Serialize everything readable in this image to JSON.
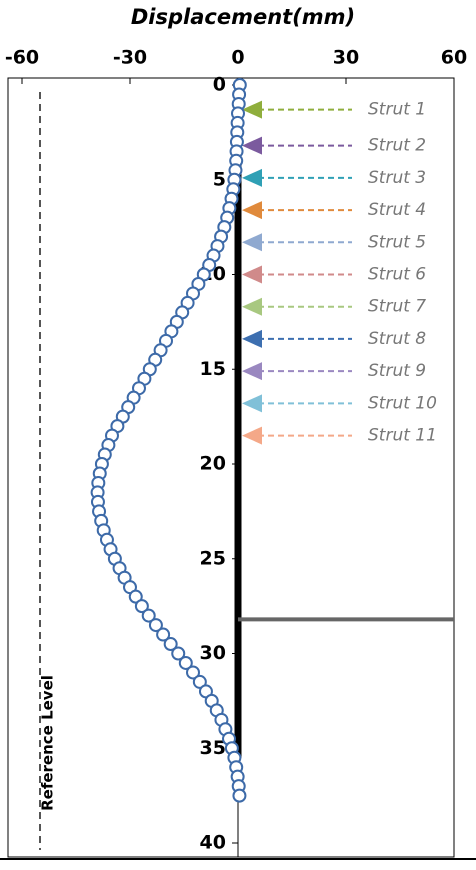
{
  "chart_data": {
    "type": "scatter",
    "title": "Displacement(mm)",
    "xlim": [
      -60,
      60
    ],
    "xticks": [
      -60,
      -30,
      0,
      30,
      60
    ],
    "ylim": [
      0,
      40
    ],
    "yticks": [
      0,
      5,
      10,
      15,
      20,
      25,
      30,
      35,
      40
    ],
    "y_inverted": true,
    "marker_color": "#3d6aa8",
    "x": [
      0.5,
      0.3,
      0.2,
      0,
      -0.1,
      -0.2,
      -0.3,
      -0.4,
      -0.5,
      -0.7,
      -1,
      -1.3,
      -1.8,
      -2.4,
      -3,
      -3.8,
      -4.7,
      -5.7,
      -6.8,
      -8,
      -9.5,
      -11,
      -12.5,
      -14,
      -15.5,
      -17,
      -18.5,
      -20,
      -21.5,
      -23,
      -24.5,
      -26,
      -27.5,
      -29,
      -30.5,
      -32,
      -33.5,
      -35,
      -36,
      -37,
      -37.8,
      -38.4,
      -38.8,
      -39,
      -38.9,
      -38.6,
      -38,
      -37.3,
      -36.4,
      -35.4,
      -34.2,
      -32.9,
      -31.5,
      -30,
      -28.4,
      -26.7,
      -24.8,
      -22.8,
      -20.8,
      -18.7,
      -16.6,
      -14.5,
      -12.5,
      -10.6,
      -8.9,
      -7.3,
      -5.9,
      -4.6,
      -3.5,
      -2.5,
      -1.7,
      -1,
      -0.5,
      -0.1,
      0.2,
      0.4
    ],
    "y": [
      0,
      0.5,
      1,
      1.5,
      2,
      2.5,
      3,
      3.5,
      4,
      4.5,
      5,
      5.5,
      6,
      6.5,
      7,
      7.5,
      8,
      8.5,
      9,
      9.5,
      10,
      10.5,
      11,
      11.5,
      12,
      12.5,
      13,
      13.5,
      14,
      14.5,
      15,
      15.5,
      16,
      16.5,
      17,
      17.5,
      18,
      18.5,
      19,
      19.5,
      20,
      20.5,
      21,
      21.5,
      22,
      22.5,
      23,
      23.5,
      24,
      24.5,
      25,
      25.5,
      26,
      26.5,
      27,
      27.5,
      28,
      28.5,
      29,
      29.5,
      30,
      30.5,
      31,
      31.5,
      32,
      32.5,
      33,
      33.5,
      34,
      34.5,
      35,
      35.5,
      36,
      36.5,
      37,
      37.5
    ],
    "wall_depth": 35.5,
    "excavation_depth": 28.2,
    "reference_level": {
      "label": "Reference Level",
      "x": -55
    },
    "struts": [
      {
        "label": "Strut 1",
        "depth": 1.3,
        "color": "#8fae3c"
      },
      {
        "label": "Strut 2",
        "depth": 3.2,
        "color": "#7b5a9e"
      },
      {
        "label": "Strut 3",
        "depth": 4.9,
        "color": "#2fa0b5"
      },
      {
        "label": "Strut 4",
        "depth": 6.6,
        "color": "#e08a3c"
      },
      {
        "label": "Strut 5",
        "depth": 8.3,
        "color": "#8fa9d0"
      },
      {
        "label": "Strut 6",
        "depth": 10.0,
        "color": "#d08a8a"
      },
      {
        "label": "Strut 7",
        "depth": 11.7,
        "color": "#a8c880"
      },
      {
        "label": "Strut 8",
        "depth": 13.4,
        "color": "#3d6fb0"
      },
      {
        "label": "Strut 9",
        "depth": 15.1,
        "color": "#9a88c0"
      },
      {
        "label": "Strut 10",
        "depth": 16.8,
        "color": "#80c0d8"
      },
      {
        "label": "Strut 11",
        "depth": 18.5,
        "color": "#f4a888"
      }
    ]
  }
}
